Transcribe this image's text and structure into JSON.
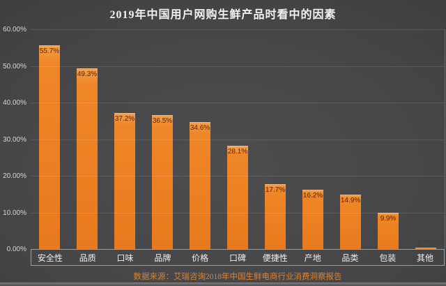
{
  "title": "2019年中国用户网购生鲜产品时看中的因素",
  "source": "数据来源：艾瑞咨询2018年中国生鲜电商行业消费洞察报告",
  "chart_data": {
    "type": "bar",
    "title": "2019年中国用户网购生鲜产品时看中的因素",
    "categories": [
      "安全性",
      "品质",
      "口味",
      "品牌",
      "价格",
      "口碑",
      "便捷性",
      "产地",
      "品类",
      "包装",
      "其他"
    ],
    "values": [
      55.7,
      49.3,
      37.2,
      36.5,
      34.6,
      28.1,
      17.7,
      16.2,
      14.9,
      9.9,
      0.4
    ],
    "value_labels": [
      "55.7%",
      "49.3%",
      "37.2%",
      "36.5%",
      "34.6%",
      "28.1%",
      "17.7%",
      "16.2%",
      "14.9%",
      "9.9%",
      "0.4%"
    ],
    "xlabel": "",
    "ylabel": "",
    "ylim": [
      0,
      60
    ],
    "yticks": [
      "0.00%",
      "10.00%",
      "20.00%",
      "30.00%",
      "40.00%",
      "50.00%",
      "60.00%"
    ],
    "grid": true,
    "legend": false,
    "annotations": [
      "数据来源：艾瑞咨询2018年中国生鲜电商行业消费洞察报告"
    ],
    "colors": {
      "bar": "#ee8023",
      "bar_highlight": "#f6a04b",
      "data_label": "#55240a",
      "background": "#464648",
      "axis_text": "#d6d6d6",
      "category_text": "#efefef",
      "gridline": "rgba(255,255,255,0.11)",
      "box_border": "#9e9e9e",
      "source_text": "#dd8330",
      "title_text": "#f2f2f2"
    }
  }
}
